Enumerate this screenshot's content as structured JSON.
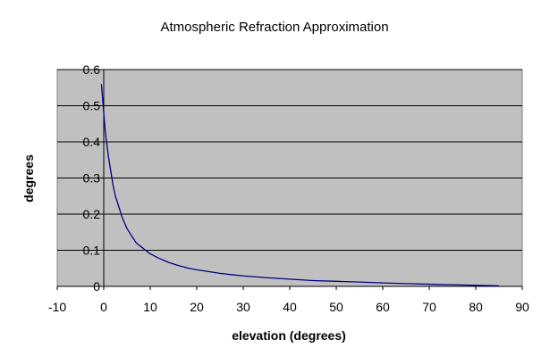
{
  "chart_data": {
    "type": "line",
    "title": "Atmospheric Refraction Approximation",
    "xlabel": "elevation (degrees)",
    "ylabel": "degrees",
    "xlim": [
      -10,
      90
    ],
    "ylim": [
      0,
      0.6
    ],
    "x_ticks": [
      -10,
      0,
      10,
      20,
      30,
      40,
      50,
      60,
      70,
      80,
      90
    ],
    "x_tick_labels": [
      "-10",
      "0",
      "10",
      "20",
      "30",
      "40",
      "50",
      "60",
      "70",
      "80",
      "90"
    ],
    "y_ticks": [
      0,
      0.1,
      0.2,
      0.3,
      0.4,
      0.5,
      0.6
    ],
    "y_tick_labels": [
      "0",
      "0.1",
      "0.2",
      "0.3",
      "0.4",
      "0.5",
      "0.6"
    ],
    "grid": "horizontal",
    "legend": "none",
    "plot_background": "#c0c0c0",
    "series": [
      {
        "color": "#000080",
        "x": [
          -0.5,
          -0.25,
          0,
          0.25,
          0.5,
          1,
          1.5,
          2,
          2.5,
          3,
          4,
          5,
          6,
          7,
          8,
          9,
          10,
          12,
          14,
          16,
          18,
          20,
          25,
          30,
          35,
          40,
          45,
          50,
          55,
          60,
          65,
          70,
          75,
          80,
          85
        ],
        "y": [
          0.56,
          0.52,
          0.48,
          0.44,
          0.41,
          0.36,
          0.32,
          0.28,
          0.25,
          0.23,
          0.19,
          0.16,
          0.14,
          0.12,
          0.11,
          0.1,
          0.09,
          0.077,
          0.066,
          0.058,
          0.051,
          0.046,
          0.036,
          0.029,
          0.024,
          0.02,
          0.016,
          0.014,
          0.012,
          0.0095,
          0.0077,
          0.006,
          0.0044,
          0.0029,
          0.0014
        ]
      }
    ]
  }
}
